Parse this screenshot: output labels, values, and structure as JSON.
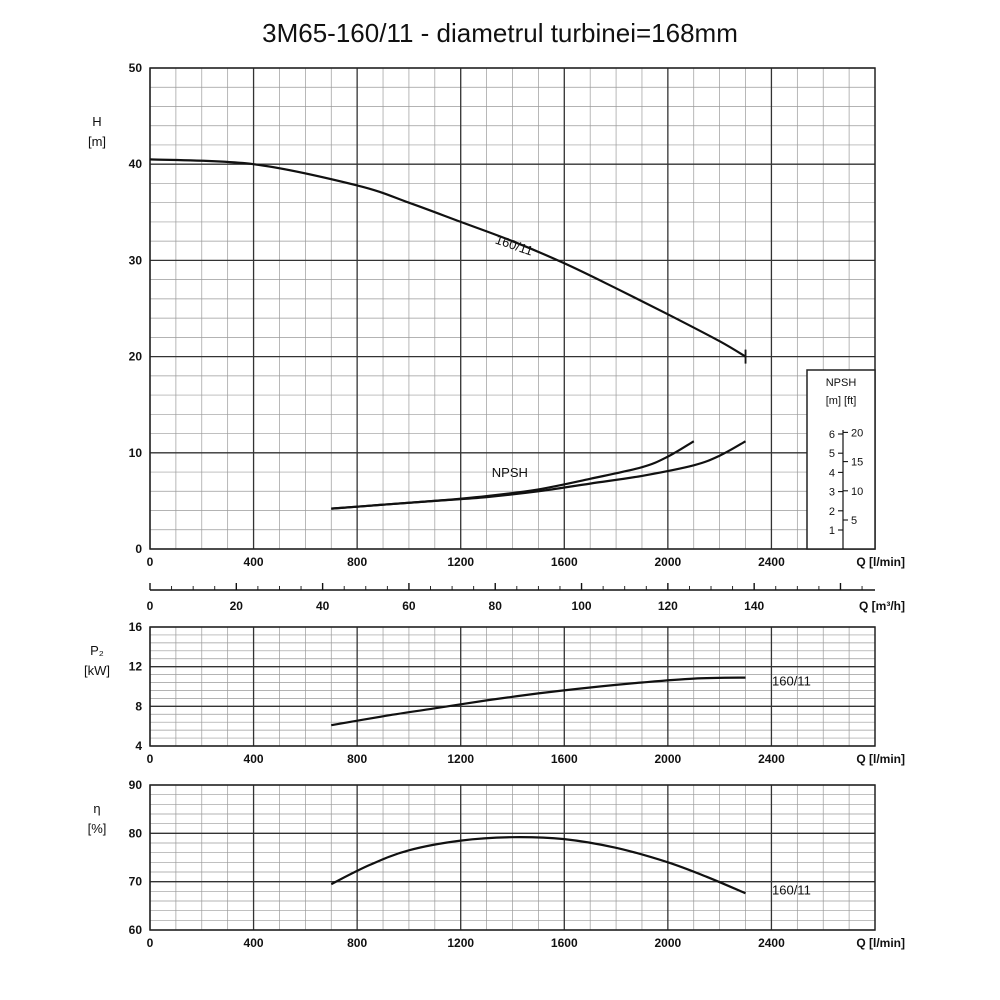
{
  "title": "3M65-160/11 - diametrul turbinei=168mm",
  "chart_data": [
    {
      "type": "line",
      "id": "head",
      "ylabel": "H",
      "yunit": "[m]",
      "xlabel": "Q [l/min]",
      "xlim": [
        0,
        2800
      ],
      "ylim": [
        0,
        50
      ],
      "x_ticks": [
        0,
        400,
        800,
        1200,
        1600,
        2000,
        2400
      ],
      "y_ticks": [
        0,
        10,
        20,
        30,
        40,
        50
      ],
      "grid": true,
      "secondary_x": {
        "label": "Q [m³/h]",
        "ticks": [
          0,
          20,
          40,
          60,
          80,
          100,
          120,
          140
        ]
      },
      "series": [
        {
          "name": "160/11",
          "x": [
            0,
            400,
            800,
            1000,
            1200,
            1400,
            1600,
            1800,
            2000,
            2200,
            2300
          ],
          "y": [
            40.5,
            40.0,
            37.8,
            36.0,
            34.0,
            32.0,
            29.7,
            27.1,
            24.4,
            21.6,
            20.0
          ]
        },
        {
          "name": "NPSH",
          "x": [
            700,
            900,
            1100,
            1300,
            1500,
            1700,
            1900,
            2000,
            2100
          ],
          "y": [
            4.2,
            4.6,
            5.0,
            5.5,
            6.2,
            7.3,
            8.5,
            9.6,
            11.2
          ]
        },
        {
          "name": "",
          "x": [
            700,
            900,
            1100,
            1300,
            1500,
            1700,
            1900,
            2100,
            2200,
            2300
          ],
          "y": [
            4.2,
            4.6,
            5.0,
            5.4,
            6.0,
            6.8,
            7.6,
            8.7,
            9.7,
            11.2
          ]
        }
      ],
      "npsh_scale": {
        "title": "NPSH",
        "units": "[m] [ft]",
        "m_ticks": [
          "1",
          "2",
          "3",
          "4",
          "5",
          "6"
        ],
        "ft_ticks": [
          "5",
          "10",
          "15",
          "20"
        ]
      }
    },
    {
      "type": "line",
      "id": "power",
      "ylabel": "P₂",
      "yunit": "[kW]",
      "xlabel": "Q [l/min]",
      "xlim": [
        0,
        2800
      ],
      "ylim": [
        4,
        16
      ],
      "x_ticks": [
        0,
        400,
        800,
        1200,
        1600,
        2000,
        2400
      ],
      "y_ticks": [
        4,
        8,
        12,
        16
      ],
      "grid": true,
      "series": [
        {
          "name": "160/11",
          "x": [
            700,
            900,
            1100,
            1300,
            1500,
            1700,
            1900,
            2100,
            2300
          ],
          "y": [
            6.1,
            7.0,
            7.8,
            8.6,
            9.3,
            9.9,
            10.4,
            10.8,
            10.9
          ]
        }
      ]
    },
    {
      "type": "line",
      "id": "efficiency",
      "ylabel": "η",
      "yunit": "[%]",
      "xlabel": "Q [l/min]",
      "xlim": [
        0,
        2800
      ],
      "ylim": [
        60,
        90
      ],
      "x_ticks": [
        0,
        400,
        800,
        1200,
        1600,
        2000,
        2400
      ],
      "y_ticks": [
        60,
        70,
        80,
        90
      ],
      "grid": true,
      "series": [
        {
          "name": "160/11",
          "x": [
            700,
            850,
            1000,
            1200,
            1400,
            1600,
            1800,
            2000,
            2150,
            2300
          ],
          "y": [
            69.5,
            73.5,
            76.5,
            78.5,
            79.2,
            78.8,
            77.0,
            74.0,
            71.0,
            67.6
          ]
        }
      ]
    }
  ]
}
